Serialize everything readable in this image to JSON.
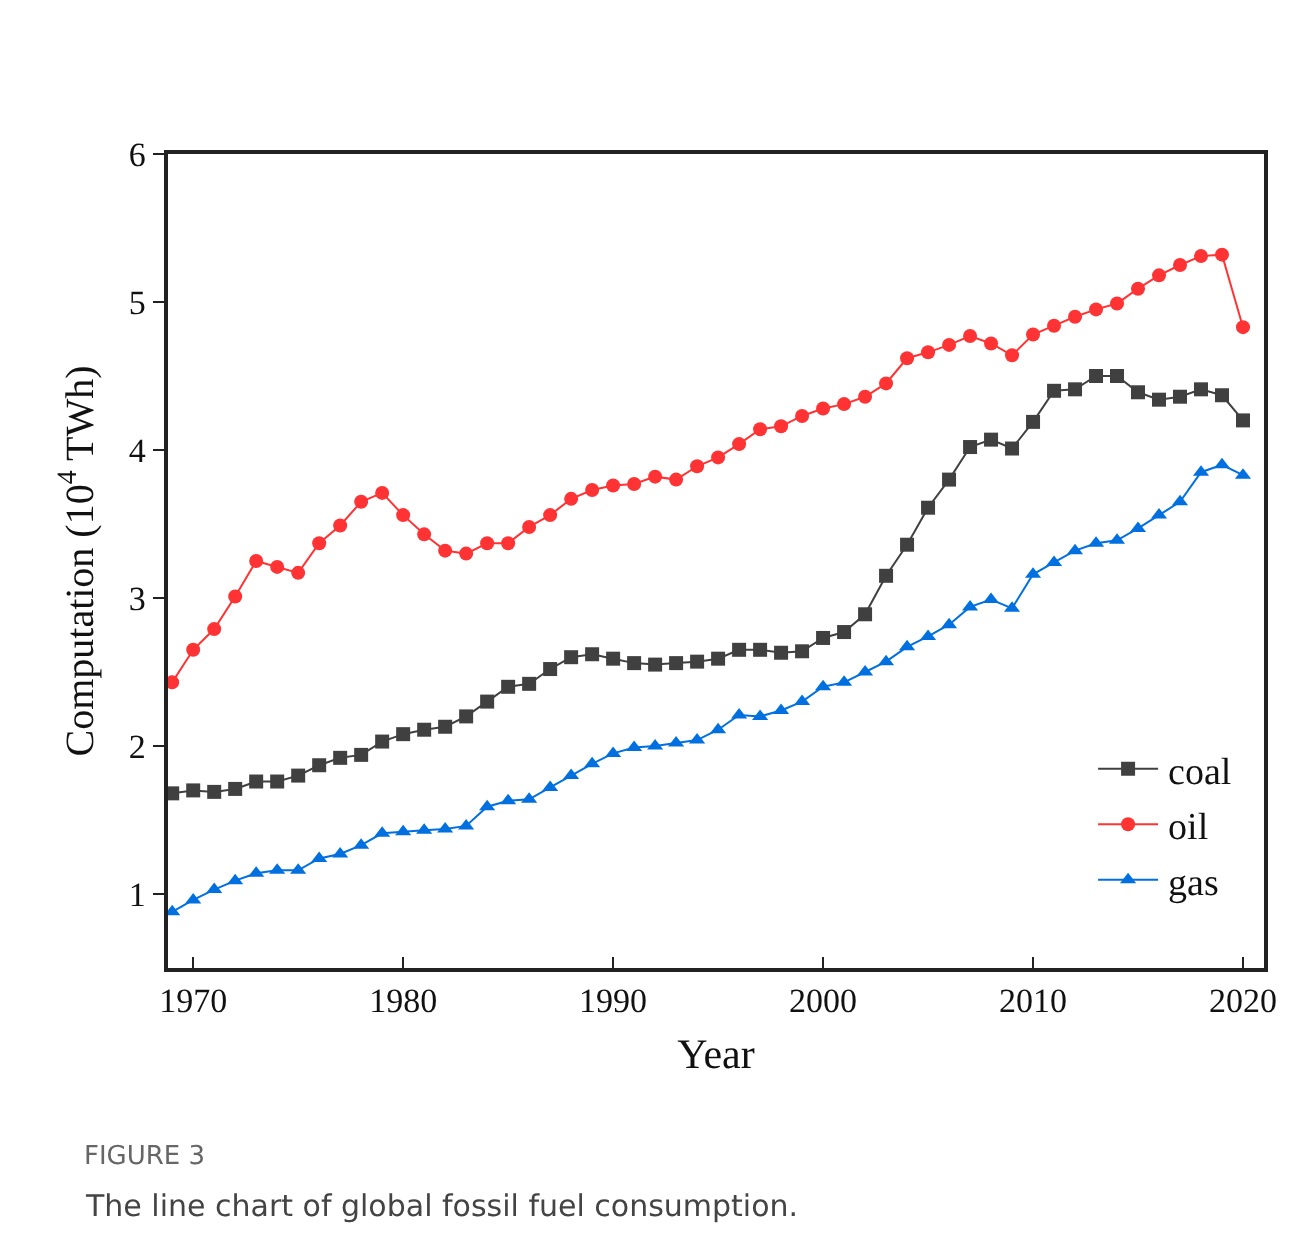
{
  "chart_data": {
    "type": "line",
    "xlabel": "Year",
    "ylabel": "Computation (10$^{4}$ TWh)",
    "annotations": [
      "FIGURE 3",
      "The line chart of global fossil fuel consumption."
    ],
    "x": [
      1969,
      1970,
      1971,
      1972,
      1973,
      1974,
      1975,
      1976,
      1977,
      1978,
      1979,
      1980,
      1981,
      1982,
      1983,
      1984,
      1985,
      1986,
      1987,
      1988,
      1989,
      1990,
      1991,
      1992,
      1993,
      1994,
      1995,
      1996,
      1997,
      1998,
      1999,
      2000,
      2001,
      2002,
      2003,
      2004,
      2005,
      2006,
      2007,
      2008,
      2009,
      2010,
      2011,
      2012,
      2013,
      2014,
      2015,
      2016,
      2017,
      2018,
      2019,
      2020
    ],
    "series": [
      {
        "name": "coal",
        "color": "#404040",
        "marker": "square",
        "values": [
          1.68,
          1.7,
          1.69,
          1.71,
          1.76,
          1.76,
          1.8,
          1.87,
          1.92,
          1.94,
          2.03,
          2.08,
          2.11,
          2.13,
          2.2,
          2.3,
          2.4,
          2.42,
          2.52,
          2.6,
          2.62,
          2.59,
          2.56,
          2.55,
          2.56,
          2.57,
          2.59,
          2.65,
          2.65,
          2.63,
          2.64,
          2.73,
          2.77,
          2.89,
          3.15,
          3.36,
          3.61,
          3.8,
          4.02,
          4.07,
          4.01,
          4.19,
          4.4,
          4.41,
          4.5,
          4.5,
          4.39,
          4.34,
          4.36,
          4.41,
          4.37,
          4.2
        ]
      },
      {
        "name": "oil",
        "color": "#ff3333",
        "marker": "circle",
        "values": [
          2.43,
          2.65,
          2.79,
          3.01,
          3.25,
          3.21,
          3.17,
          3.37,
          3.49,
          3.65,
          3.71,
          3.56,
          3.43,
          3.32,
          3.3,
          3.37,
          3.37,
          3.48,
          3.56,
          3.67,
          3.73,
          3.76,
          3.77,
          3.82,
          3.8,
          3.89,
          3.95,
          4.04,
          4.14,
          4.16,
          4.23,
          4.28,
          4.31,
          4.36,
          4.45,
          4.62,
          4.66,
          4.71,
          4.77,
          4.72,
          4.64,
          4.78,
          4.84,
          4.9,
          4.95,
          4.99,
          5.09,
          5.18,
          5.25,
          5.31,
          5.32,
          4.83
        ]
      },
      {
        "name": "gas",
        "color": "#0070e0",
        "marker": "triangle",
        "values": [
          0.88,
          0.96,
          1.03,
          1.09,
          1.14,
          1.16,
          1.16,
          1.24,
          1.27,
          1.33,
          1.41,
          1.42,
          1.43,
          1.44,
          1.46,
          1.59,
          1.63,
          1.64,
          1.72,
          1.8,
          1.88,
          1.95,
          1.99,
          2.0,
          2.02,
          2.04,
          2.11,
          2.21,
          2.2,
          2.24,
          2.3,
          2.4,
          2.43,
          2.5,
          2.57,
          2.67,
          2.74,
          2.82,
          2.94,
          2.99,
          2.93,
          3.16,
          3.24,
          3.32,
          3.37,
          3.39,
          3.47,
          3.56,
          3.65,
          3.85,
          3.9,
          3.83
        ]
      }
    ],
    "xlim": [
      1968.8,
      2021
    ],
    "xticks": [
      1970,
      1980,
      1990,
      2000,
      2010,
      2020
    ],
    "ylim": [
      0.5,
      6
    ],
    "yticks": [
      1,
      2,
      3,
      4,
      5,
      6
    ],
    "grid": false,
    "legend": "bottom right",
    "line_style": "solid"
  }
}
